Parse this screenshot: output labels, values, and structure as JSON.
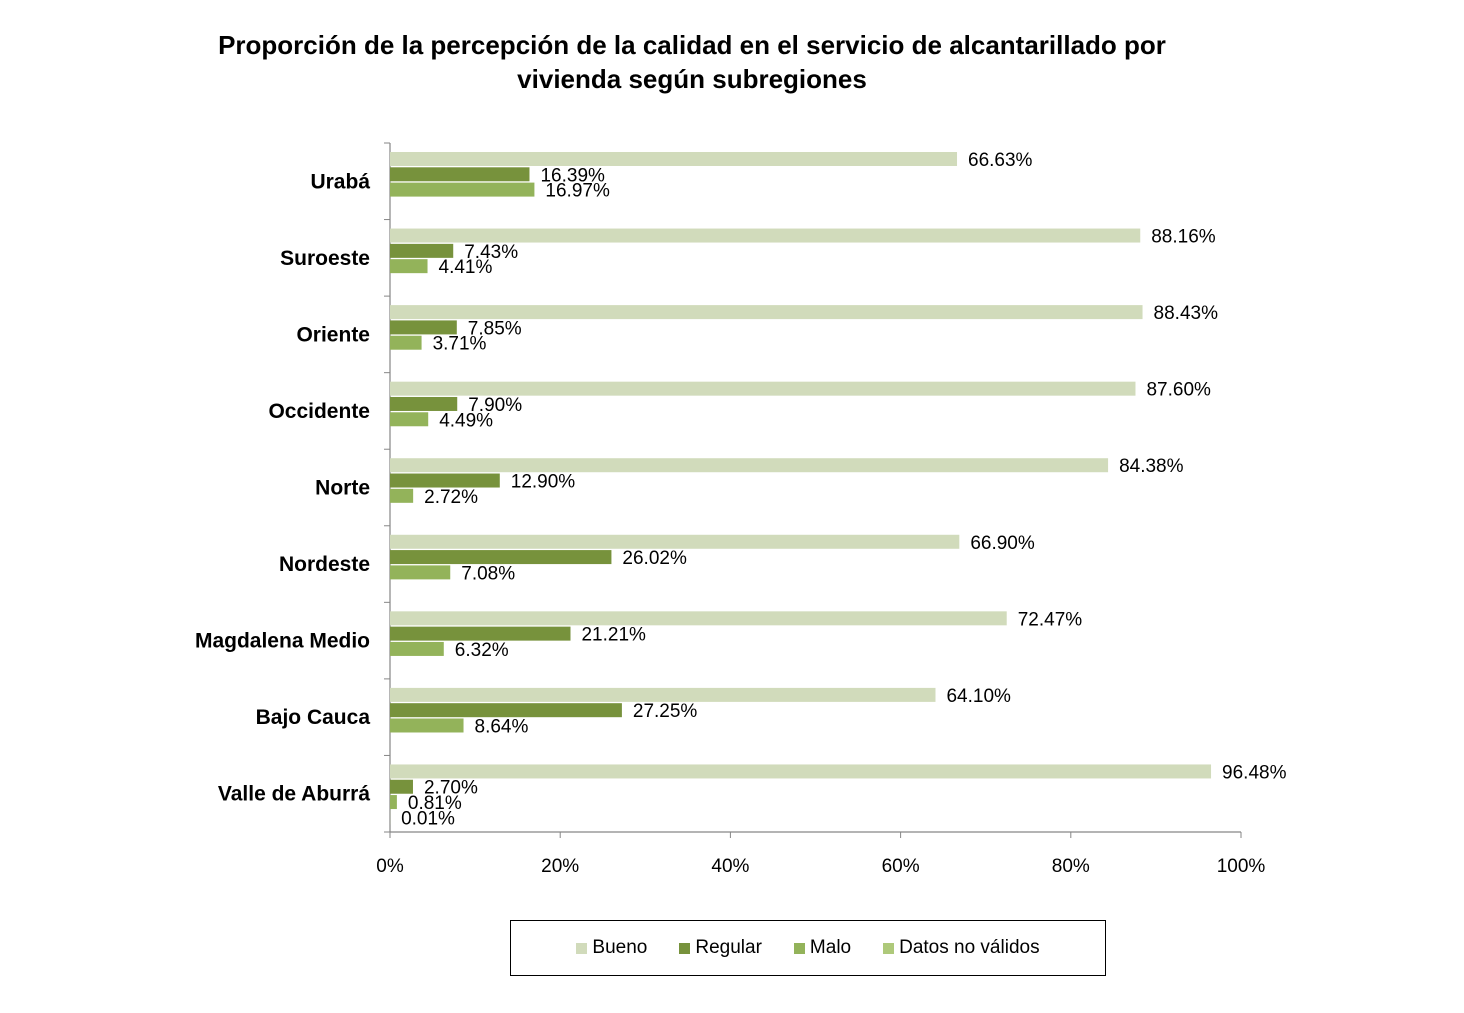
{
  "chart_data": {
    "type": "bar",
    "orientation": "horizontal",
    "title_lines": [
      "Proporción de la percepción de la calidad en el servicio de alcantarillado por",
      "vivienda según subregiones"
    ],
    "categories": [
      "Urabá",
      "Suroeste",
      "Oriente",
      "Occidente",
      "Norte",
      "Nordeste",
      "Magdalena Medio",
      "Bajo Cauca",
      "Valle de Aburrá"
    ],
    "series": [
      {
        "name": "Bueno",
        "color": "#d1dbbb",
        "values": [
          66.63,
          88.16,
          88.43,
          87.6,
          84.38,
          66.9,
          72.47,
          64.1,
          96.48
        ],
        "labels": [
          "66.63%",
          "88.16%",
          "88.43%",
          "87.60%",
          "84.38%",
          "66.90%",
          "72.47%",
          "64.10%",
          "96.48%"
        ]
      },
      {
        "name": "Regular",
        "color": "#77923c",
        "values": [
          16.39,
          7.43,
          7.85,
          7.9,
          12.9,
          26.02,
          21.21,
          27.25,
          2.7
        ],
        "labels": [
          "16.39%",
          "7.43%",
          "7.85%",
          "7.90%",
          "12.90%",
          "26.02%",
          "21.21%",
          "27.25%",
          "2.70%"
        ]
      },
      {
        "name": "Malo",
        "color": "#93b35a",
        "values": [
          16.97,
          4.41,
          3.71,
          4.49,
          2.72,
          7.08,
          6.32,
          8.64,
          0.81
        ],
        "labels": [
          "16.97%",
          "4.41%",
          "3.71%",
          "4.49%",
          "2.72%",
          "7.08%",
          "6.32%",
          "8.64%",
          "0.81%"
        ]
      },
      {
        "name": "Datos no válidos",
        "color": "#aec97a",
        "values": [
          null,
          null,
          null,
          null,
          null,
          null,
          null,
          null,
          0.01
        ],
        "labels": [
          null,
          null,
          null,
          null,
          null,
          null,
          null,
          null,
          "0.01%"
        ]
      }
    ],
    "xlim": [
      0,
      100
    ],
    "xticks": [
      0,
      20,
      40,
      60,
      80,
      100
    ],
    "xtick_labels": [
      "0%",
      "20%",
      "40%",
      "60%",
      "80%",
      "100%"
    ],
    "grid": false,
    "legend_position": "bottom"
  }
}
